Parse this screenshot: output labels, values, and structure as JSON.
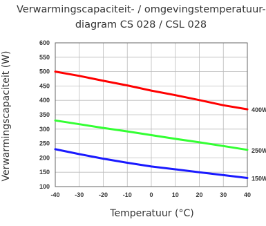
{
  "chart_data": {
    "type": "line",
    "title_line1": "Verwarmingscapaciteit- / omgevingstemperatuur-",
    "title_line2": "diagram CS 028 / CSL 028",
    "xlabel": "Temperatuur (°C)",
    "ylabel": "Verwarmingscapaciteit (W)",
    "xlim": [
      -40,
      40
    ],
    "ylim": [
      100,
      600
    ],
    "xticks": [
      "-40",
      "-30",
      "-20",
      "-10",
      "0",
      "10",
      "20",
      "30",
      "40"
    ],
    "yticks": [
      "100",
      "150",
      "200",
      "250",
      "300",
      "350",
      "400",
      "450",
      "500",
      "550",
      "600"
    ],
    "grid": true,
    "x": [
      -40,
      -30,
      -20,
      -10,
      0,
      10,
      20,
      30,
      40
    ],
    "series": [
      {
        "name": "400W",
        "color": "#ff0000",
        "values": [
          500,
          485,
          468,
          452,
          434,
          418,
          401,
          383,
          369
        ]
      },
      {
        "name": "250W",
        "color": "#33ff33",
        "values": [
          330,
          317,
          304,
          292,
          279,
          266,
          254,
          241,
          228
        ]
      },
      {
        "name": "150W",
        "color": "#1a1aff",
        "values": [
          230,
          213,
          197,
          183,
          170,
          160,
          150,
          140,
          130
        ]
      }
    ]
  }
}
